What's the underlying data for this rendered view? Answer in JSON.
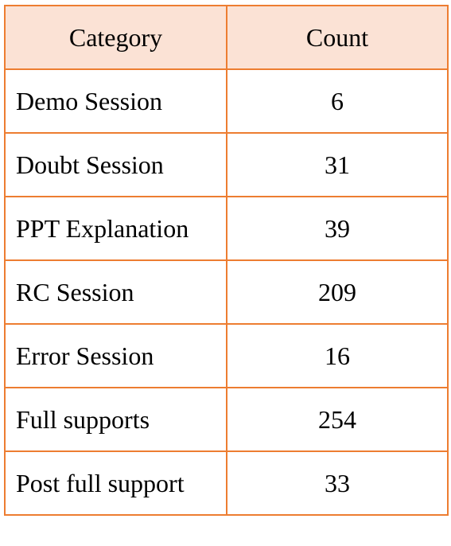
{
  "table": {
    "headers": [
      "Category",
      "Count"
    ],
    "rows": [
      {
        "category": "Demo Session",
        "count": "6"
      },
      {
        "category": "Doubt Session",
        "count": "31"
      },
      {
        "category": "PPT Explanation",
        "count": "39"
      },
      {
        "category": "RC Session",
        "count": "209"
      },
      {
        "category": "Error Session",
        "count": "16"
      },
      {
        "category": "Full supports",
        "count": "254"
      },
      {
        "category": "Post full support",
        "count": "33"
      }
    ],
    "colors": {
      "border": "#ED7D31",
      "header_background": "#FBE2D5",
      "text": "#000000"
    }
  }
}
